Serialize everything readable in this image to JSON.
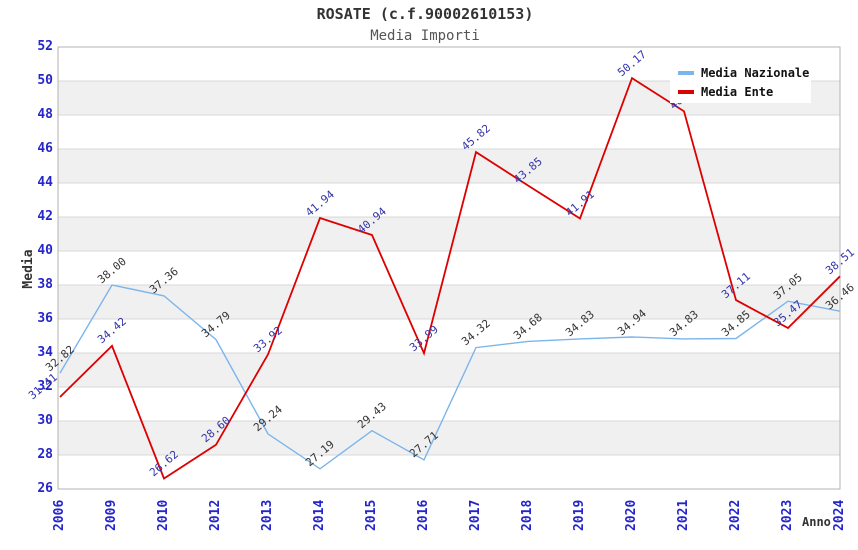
{
  "header": {
    "title": "ROSATE (c.f.90002610153)",
    "subtitle": "Media Importi"
  },
  "axes": {
    "y_title": "Media",
    "x_title": "Anno",
    "tick_label_color": "#2525cc"
  },
  "legend": {
    "items": [
      {
        "label": "Media Nazionale",
        "color": "#7cb5ec"
      },
      {
        "label": "Media Ente",
        "color": "#dd0000"
      }
    ]
  },
  "chart_data": {
    "type": "line",
    "title": "ROSATE (c.f.90002610153)",
    "subtitle": "Media Importi",
    "xlabel": "Anno",
    "ylabel": "Media",
    "categories": [
      "2006",
      "2009",
      "2010",
      "2012",
      "2013",
      "2014",
      "2015",
      "2016",
      "2017",
      "2018",
      "2019",
      "2020",
      "2021",
      "2022",
      "2023",
      "2024"
    ],
    "ylim": [
      26,
      52
    ],
    "ytick_step": 2,
    "grid": "horizontal gridlines with alternating gray bands",
    "legend_position": "top-right",
    "band_color": "#f0f0f0",
    "gridline_color": "#d9d9d9",
    "border_color": "#b3b3b3",
    "series": [
      {
        "name": "Media Nazionale",
        "color": "#7cb5ec",
        "label_color": "#333333",
        "values": [
          32.82,
          38.0,
          37.36,
          34.79,
          29.24,
          27.19,
          29.43,
          27.71,
          34.32,
          34.68,
          34.83,
          34.94,
          34.83,
          34.85,
          37.05,
          36.46
        ]
      },
      {
        "name": "Media Ente",
        "color": "#dd0000",
        "label_color": "#3333aa",
        "values": [
          31.41,
          34.42,
          26.62,
          28.6,
          33.92,
          41.94,
          40.94,
          33.99,
          45.82,
          43.85,
          41.91,
          50.17,
          48.22,
          37.11,
          35.47,
          38.51
        ]
      }
    ]
  }
}
